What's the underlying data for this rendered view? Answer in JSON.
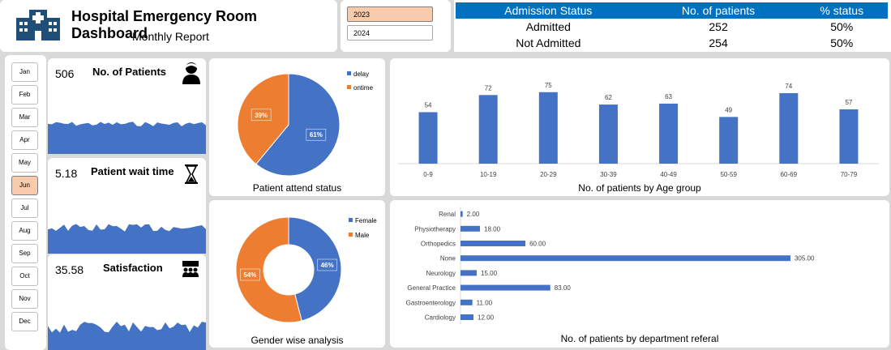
{
  "header": {
    "title": "Hospital Emergency Room Dashboard",
    "subtitle": "Monthly Report"
  },
  "years": [
    {
      "label": "2023",
      "selected": true
    },
    {
      "label": "2024",
      "selected": false
    }
  ],
  "admission": {
    "headers": [
      "Admission Status",
      "No. of patients",
      "% status"
    ],
    "rows": [
      [
        "Admitted",
        "252",
        "50%"
      ],
      [
        "Not Admitted",
        "254",
        "50%"
      ]
    ]
  },
  "months": [
    "Jan",
    "Feb",
    "Mar",
    "Apr",
    "May",
    "Jun",
    "Jul",
    "Aug",
    "Sep",
    "Oct",
    "Nov",
    "Dec"
  ],
  "selected_month": "Jun",
  "kpis": [
    {
      "value": "506",
      "label": "No. of Patients",
      "icon": "patient-icon"
    },
    {
      "value": "5.18",
      "label": "Patient wait time",
      "icon": "hourglass-icon"
    },
    {
      "value": "35.58",
      "label": "Satisfaction",
      "icon": "group-icon"
    }
  ],
  "colors": {
    "blue": "#4472c4",
    "orange": "#ed7d31",
    "accent": "#0070c0",
    "selected": "#f8cbad"
  },
  "chart_data": [
    {
      "type": "pie",
      "title": "Patient attend status",
      "legend": "top-right",
      "labels": [
        "delay",
        "ontime"
      ],
      "values": [
        61,
        39
      ],
      "data_labels": [
        "61%",
        "39%"
      ]
    },
    {
      "type": "pie",
      "subtype": "donut",
      "title": "Gender wise analysis",
      "legend": "top-right",
      "labels": [
        "Female",
        "Male"
      ],
      "values": [
        46,
        54
      ],
      "data_labels": [
        "46%",
        "54%"
      ]
    },
    {
      "type": "bar",
      "title": "No. of patients by Age group",
      "categories": [
        "0-9",
        "10-19",
        "20-29",
        "30-39",
        "40-49",
        "50-59",
        "60-69",
        "70-79"
      ],
      "values": [
        54,
        72,
        75,
        62,
        63,
        49,
        74,
        57
      ],
      "ylim": [
        0,
        85
      ],
      "grid": false
    },
    {
      "type": "bar",
      "orientation": "horizontal",
      "title": "No. of patients by department referal",
      "categories": [
        "Renal",
        "Physiotherapy",
        "Orthopedics",
        "None",
        "Neurology",
        "General Practice",
        "Gastroenterology",
        "Cardiology"
      ],
      "values": [
        2,
        18,
        60,
        305,
        15,
        83,
        11,
        12
      ],
      "data_labels": [
        "2.00",
        "18.00",
        "60.00",
        "305.00",
        "15.00",
        "83.00",
        "11.00",
        "12.00"
      ],
      "xlim": [
        0,
        320
      ],
      "grid": false
    }
  ]
}
